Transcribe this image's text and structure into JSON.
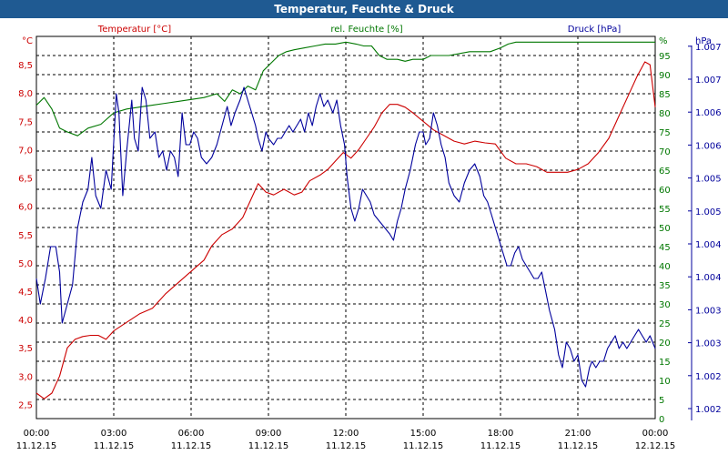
{
  "window": {
    "title": "Temperatur, Feuchte & Druck"
  },
  "colors": {
    "background": "#ffffff",
    "title_bar": "#1f5a92",
    "temperature": "#cc0000",
    "humidity": "#007700",
    "pressure": "#00009c",
    "grid": "#000000"
  },
  "chart_data": {
    "type": "line",
    "title": "Temperatur, Feuchte & Druck",
    "grid": true,
    "x_ticks": [
      {
        "time": "00:00",
        "date": "11.12.15"
      },
      {
        "time": "03:00",
        "date": "11.12.15"
      },
      {
        "time": "06:00",
        "date": "11.12.15"
      },
      {
        "time": "09:00",
        "date": "11.12.15"
      },
      {
        "time": "12:00",
        "date": "11.12.15"
      },
      {
        "time": "15:00",
        "date": "11.12.15"
      },
      {
        "time": "18:00",
        "date": "11.12.15"
      },
      {
        "time": "21:00",
        "date": "11.12.15"
      },
      {
        "time": "00:00",
        "date": "12.12.15"
      }
    ],
    "x_unit_hours": [
      0,
      24
    ],
    "axes": {
      "temperature": {
        "unit": "°C",
        "label": "Temperatur [°C]",
        "range": [
          2.25,
          9.0
        ],
        "ticks": [
          "2,5",
          "3,0",
          "3,5",
          "4,0",
          "4,5",
          "5,0",
          "5,5",
          "6,0",
          "6,5",
          "7,0",
          "7,5",
          "8,0",
          "8,5"
        ]
      },
      "humidity": {
        "unit": "%",
        "label": "rel. Feuchte [%]",
        "range": [
          0,
          100
        ],
        "ticks": [
          "0",
          "5",
          "10",
          "15",
          "20",
          "25",
          "30",
          "35",
          "40",
          "45",
          "50",
          "55",
          "60",
          "65",
          "70",
          "75",
          "80",
          "85",
          "90",
          "95"
        ]
      },
      "pressure": {
        "unit": "hPa",
        "label": "Druck [hPa]",
        "range": [
          1001.5,
          1007.5
        ],
        "ticks": [
          "1.002",
          "1.002",
          "1.003",
          "1.003",
          "1.004",
          "1.004",
          "1.005",
          "1.005",
          "1.006",
          "1.006",
          "1.007",
          "1.007"
        ]
      }
    },
    "series": [
      {
        "name": "Temperatur [°C]",
        "axis": "temperature",
        "points": [
          [
            0,
            2.7
          ],
          [
            0.3,
            2.6
          ],
          [
            0.6,
            2.7
          ],
          [
            0.9,
            3.0
          ],
          [
            1.2,
            3.5
          ],
          [
            1.5,
            3.65
          ],
          [
            1.8,
            3.7
          ],
          [
            2.1,
            3.72
          ],
          [
            2.4,
            3.72
          ],
          [
            2.7,
            3.65
          ],
          [
            3.0,
            3.8
          ],
          [
            3.5,
            3.95
          ],
          [
            4.0,
            4.1
          ],
          [
            4.5,
            4.2
          ],
          [
            5.0,
            4.45
          ],
          [
            5.5,
            4.65
          ],
          [
            6.0,
            4.85
          ],
          [
            6.5,
            5.05
          ],
          [
            6.8,
            5.3
          ],
          [
            7.2,
            5.5
          ],
          [
            7.6,
            5.6
          ],
          [
            8.0,
            5.8
          ],
          [
            8.3,
            6.1
          ],
          [
            8.6,
            6.4
          ],
          [
            8.9,
            6.25
          ],
          [
            9.2,
            6.2
          ],
          [
            9.6,
            6.3
          ],
          [
            10.0,
            6.2
          ],
          [
            10.3,
            6.25
          ],
          [
            10.6,
            6.45
          ],
          [
            11.0,
            6.55
          ],
          [
            11.3,
            6.65
          ],
          [
            11.6,
            6.8
          ],
          [
            11.9,
            6.95
          ],
          [
            12.2,
            6.85
          ],
          [
            12.5,
            7.0
          ],
          [
            12.8,
            7.2
          ],
          [
            13.1,
            7.4
          ],
          [
            13.4,
            7.65
          ],
          [
            13.7,
            7.8
          ],
          [
            14.0,
            7.8
          ],
          [
            14.3,
            7.75
          ],
          [
            14.6,
            7.65
          ],
          [
            15.0,
            7.5
          ],
          [
            15.4,
            7.35
          ],
          [
            15.8,
            7.25
          ],
          [
            16.2,
            7.15
          ],
          [
            16.6,
            7.1
          ],
          [
            17.0,
            7.15
          ],
          [
            17.4,
            7.12
          ],
          [
            17.8,
            7.1
          ],
          [
            18.2,
            6.85
          ],
          [
            18.6,
            6.75
          ],
          [
            19.0,
            6.75
          ],
          [
            19.4,
            6.7
          ],
          [
            19.8,
            6.6
          ],
          [
            20.2,
            6.6
          ],
          [
            20.6,
            6.6
          ],
          [
            21.0,
            6.65
          ],
          [
            21.4,
            6.75
          ],
          [
            21.8,
            6.95
          ],
          [
            22.2,
            7.2
          ],
          [
            22.6,
            7.6
          ],
          [
            23.0,
            8.0
          ],
          [
            23.3,
            8.3
          ],
          [
            23.6,
            8.55
          ],
          [
            23.8,
            8.5
          ],
          [
            24.0,
            7.75
          ]
        ]
      },
      {
        "name": "rel. Feuchte [%]",
        "axis": "humidity",
        "points": [
          [
            0,
            82
          ],
          [
            0.3,
            84
          ],
          [
            0.6,
            81
          ],
          [
            0.9,
            76
          ],
          [
            1.2,
            75
          ],
          [
            1.6,
            74
          ],
          [
            2.0,
            76
          ],
          [
            2.5,
            77
          ],
          [
            3.0,
            80
          ],
          [
            3.5,
            81
          ],
          [
            4.0,
            81.5
          ],
          [
            4.5,
            82
          ],
          [
            5.0,
            82.5
          ],
          [
            5.5,
            83
          ],
          [
            6.0,
            83.5
          ],
          [
            6.5,
            84
          ],
          [
            7.0,
            85
          ],
          [
            7.3,
            83
          ],
          [
            7.6,
            86
          ],
          [
            7.9,
            85
          ],
          [
            8.2,
            87
          ],
          [
            8.5,
            86
          ],
          [
            8.8,
            91
          ],
          [
            9.1,
            93
          ],
          [
            9.4,
            95
          ],
          [
            9.7,
            96
          ],
          [
            10.0,
            96.5
          ],
          [
            10.4,
            97
          ],
          [
            10.8,
            97.5
          ],
          [
            11.2,
            98
          ],
          [
            11.6,
            98
          ],
          [
            12.0,
            98.5
          ],
          [
            12.4,
            98
          ],
          [
            12.7,
            97.5
          ],
          [
            13.0,
            97.5
          ],
          [
            13.3,
            95
          ],
          [
            13.6,
            94
          ],
          [
            14.0,
            94
          ],
          [
            14.3,
            93.5
          ],
          [
            14.6,
            94
          ],
          [
            15.0,
            94
          ],
          [
            15.3,
            95
          ],
          [
            15.6,
            95
          ],
          [
            16.0,
            95
          ],
          [
            16.4,
            95.5
          ],
          [
            16.8,
            96
          ],
          [
            17.2,
            96
          ],
          [
            17.6,
            96
          ],
          [
            18.0,
            97
          ],
          [
            18.3,
            98
          ],
          [
            18.6,
            98.5
          ],
          [
            19.0,
            98.5
          ],
          [
            19.5,
            98.5
          ],
          [
            20.0,
            98.5
          ],
          [
            20.5,
            98.5
          ],
          [
            21.0,
            98.5
          ],
          [
            21.5,
            98.5
          ],
          [
            22.0,
            98.5
          ],
          [
            22.5,
            98.5
          ],
          [
            23.0,
            98.5
          ],
          [
            23.5,
            98.5
          ],
          [
            24.0,
            98.5
          ]
        ]
      },
      {
        "name": "Druck [hPa]",
        "axis": "pressure",
        "points": [
          [
            0,
            1003.7
          ],
          [
            0.15,
            1003.3
          ],
          [
            0.35,
            1003.7
          ],
          [
            0.55,
            1004.2
          ],
          [
            0.75,
            1004.2
          ],
          [
            0.9,
            1003.8
          ],
          [
            1.0,
            1003.0
          ],
          [
            1.2,
            1003.3
          ],
          [
            1.4,
            1003.6
          ],
          [
            1.6,
            1004.5
          ],
          [
            1.8,
            1004.9
          ],
          [
            2.0,
            1005.1
          ],
          [
            2.15,
            1005.6
          ],
          [
            2.3,
            1005.0
          ],
          [
            2.5,
            1004.8
          ],
          [
            2.7,
            1005.4
          ],
          [
            2.9,
            1005.1
          ],
          [
            3.1,
            1006.6
          ],
          [
            3.2,
            1006.3
          ],
          [
            3.35,
            1005.0
          ],
          [
            3.5,
            1005.7
          ],
          [
            3.7,
            1006.5
          ],
          [
            3.8,
            1005.9
          ],
          [
            3.95,
            1005.7
          ],
          [
            4.1,
            1006.7
          ],
          [
            4.25,
            1006.5
          ],
          [
            4.4,
            1005.9
          ],
          [
            4.6,
            1006.0
          ],
          [
            4.75,
            1005.6
          ],
          [
            4.9,
            1005.7
          ],
          [
            5.05,
            1005.4
          ],
          [
            5.2,
            1005.7
          ],
          [
            5.35,
            1005.6
          ],
          [
            5.5,
            1005.3
          ],
          [
            5.65,
            1006.3
          ],
          [
            5.8,
            1005.8
          ],
          [
            5.95,
            1005.8
          ],
          [
            6.1,
            1006.0
          ],
          [
            6.25,
            1005.9
          ],
          [
            6.4,
            1005.6
          ],
          [
            6.6,
            1005.5
          ],
          [
            6.8,
            1005.6
          ],
          [
            7.0,
            1005.8
          ],
          [
            7.2,
            1006.1
          ],
          [
            7.4,
            1006.4
          ],
          [
            7.55,
            1006.1
          ],
          [
            7.7,
            1006.3
          ],
          [
            7.9,
            1006.5
          ],
          [
            8.05,
            1006.7
          ],
          [
            8.2,
            1006.5
          ],
          [
            8.35,
            1006.3
          ],
          [
            8.5,
            1006.1
          ],
          [
            8.6,
            1005.9
          ],
          [
            8.75,
            1005.7
          ],
          [
            8.9,
            1006.0
          ],
          [
            9.0,
            1005.9
          ],
          [
            9.2,
            1005.8
          ],
          [
            9.35,
            1005.9
          ],
          [
            9.5,
            1005.9
          ],
          [
            9.65,
            1006.0
          ],
          [
            9.8,
            1006.1
          ],
          [
            9.95,
            1006.0
          ],
          [
            10.1,
            1006.1
          ],
          [
            10.25,
            1006.2
          ],
          [
            10.4,
            1006.0
          ],
          [
            10.55,
            1006.3
          ],
          [
            10.7,
            1006.1
          ],
          [
            10.85,
            1006.4
          ],
          [
            11.0,
            1006.6
          ],
          [
            11.15,
            1006.4
          ],
          [
            11.3,
            1006.5
          ],
          [
            11.5,
            1006.3
          ],
          [
            11.65,
            1006.5
          ],
          [
            11.8,
            1006.1
          ],
          [
            11.95,
            1005.8
          ],
          [
            12.05,
            1005.3
          ],
          [
            12.2,
            1004.8
          ],
          [
            12.35,
            1004.6
          ],
          [
            12.5,
            1004.8
          ],
          [
            12.65,
            1005.1
          ],
          [
            12.8,
            1005.0
          ],
          [
            12.95,
            1004.9
          ],
          [
            13.1,
            1004.7
          ],
          [
            13.3,
            1004.6
          ],
          [
            13.5,
            1004.5
          ],
          [
            13.7,
            1004.4
          ],
          [
            13.85,
            1004.3
          ],
          [
            14.0,
            1004.6
          ],
          [
            14.15,
            1004.8
          ],
          [
            14.3,
            1005.1
          ],
          [
            14.5,
            1005.4
          ],
          [
            14.7,
            1005.8
          ],
          [
            14.85,
            1006.0
          ],
          [
            15.0,
            1006.0
          ],
          [
            15.1,
            1005.8
          ],
          [
            15.25,
            1005.9
          ],
          [
            15.4,
            1006.3
          ],
          [
            15.55,
            1006.1
          ],
          [
            15.7,
            1005.8
          ],
          [
            15.85,
            1005.6
          ],
          [
            16.0,
            1005.2
          ],
          [
            16.2,
            1005.0
          ],
          [
            16.4,
            1004.9
          ],
          [
            16.6,
            1005.2
          ],
          [
            16.8,
            1005.4
          ],
          [
            17.0,
            1005.5
          ],
          [
            17.2,
            1005.3
          ],
          [
            17.35,
            1005.0
          ],
          [
            17.5,
            1004.9
          ],
          [
            17.65,
            1004.7
          ],
          [
            17.8,
            1004.5
          ],
          [
            17.95,
            1004.3
          ],
          [
            18.1,
            1004.1
          ],
          [
            18.25,
            1003.9
          ],
          [
            18.4,
            1003.9
          ],
          [
            18.55,
            1004.1
          ],
          [
            18.7,
            1004.2
          ],
          [
            18.85,
            1004.0
          ],
          [
            19.0,
            1003.9
          ],
          [
            19.15,
            1003.8
          ],
          [
            19.3,
            1003.7
          ],
          [
            19.45,
            1003.7
          ],
          [
            19.6,
            1003.8
          ],
          [
            19.75,
            1003.5
          ],
          [
            19.9,
            1003.2
          ],
          [
            20.1,
            1002.9
          ],
          [
            20.25,
            1002.5
          ],
          [
            20.4,
            1002.3
          ],
          [
            20.55,
            1002.7
          ],
          [
            20.7,
            1002.6
          ],
          [
            20.85,
            1002.4
          ],
          [
            21.0,
            1002.5
          ],
          [
            21.15,
            1002.1
          ],
          [
            21.3,
            1002.0
          ],
          [
            21.45,
            1002.3
          ],
          [
            21.55,
            1002.4
          ],
          [
            21.7,
            1002.3
          ],
          [
            21.85,
            1002.4
          ],
          [
            22.0,
            1002.4
          ],
          [
            22.15,
            1002.6
          ],
          [
            22.3,
            1002.7
          ],
          [
            22.45,
            1002.8
          ],
          [
            22.6,
            1002.6
          ],
          [
            22.75,
            1002.7
          ],
          [
            22.9,
            1002.6
          ],
          [
            23.05,
            1002.7
          ],
          [
            23.2,
            1002.8
          ],
          [
            23.35,
            1002.9
          ],
          [
            23.5,
            1002.8
          ],
          [
            23.65,
            1002.7
          ],
          [
            23.8,
            1002.8
          ],
          [
            24.0,
            1002.6
          ]
        ]
      }
    ]
  }
}
